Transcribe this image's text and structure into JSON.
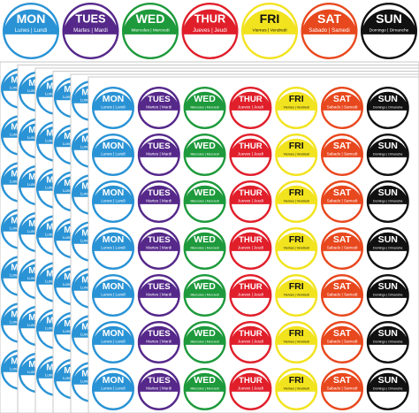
{
  "days": [
    {
      "label": "MON",
      "sub": "Lunes | Lundi",
      "color": "#2a93d5",
      "text_color": "#ffffff"
    },
    {
      "label": "TUES",
      "sub": "Martes | Mardi",
      "color": "#55288a",
      "text_color": "#ffffff"
    },
    {
      "label": "WED",
      "sub": "Miercoles | Mercredi",
      "color": "#1e9a3c",
      "text_color": "#ffffff"
    },
    {
      "label": "THUR",
      "sub": "Jueves | Jeudi",
      "color": "#e01f2b",
      "text_color": "#ffffff"
    },
    {
      "label": "FRI",
      "sub": "Viernes | Vendredi",
      "color": "#f2e31f",
      "text_color": "#111111"
    },
    {
      "label": "SAT",
      "sub": "Sabado | Samedi",
      "color": "#e8481e",
      "text_color": "#ffffff"
    },
    {
      "label": "SUN",
      "sub": "Domingo | Dimanche",
      "color": "#111111",
      "text_color": "#ffffff"
    }
  ]
}
